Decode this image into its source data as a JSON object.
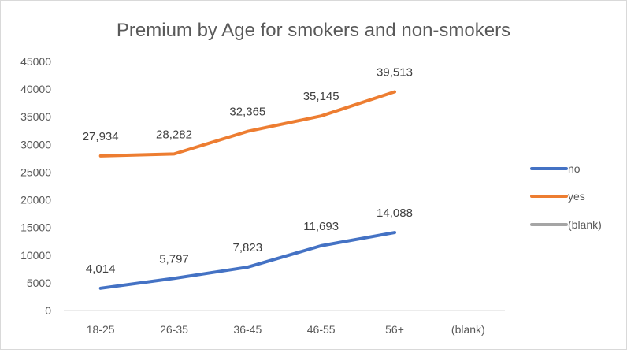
{
  "colors": {
    "no": "#4472C4",
    "yes": "#ED7D31",
    "blank": "#A5A5A5",
    "text": "#595959",
    "axis": "#d9d9d9"
  },
  "chart_data": {
    "type": "line",
    "title": "Premium by Age for smokers and non-smokers",
    "xlabel": "",
    "ylabel": "",
    "categories": [
      "18-25",
      "26-35",
      "36-45",
      "46-55",
      "56+",
      "(blank)"
    ],
    "ylim": [
      0,
      45000
    ],
    "yticks": [
      "0",
      "5000",
      "10000",
      "15000",
      "20000",
      "25000",
      "30000",
      "35000",
      "40000",
      "45000"
    ],
    "grid": false,
    "legend_position": "right",
    "series": [
      {
        "name": "no",
        "color_key": "no",
        "values": [
          4014,
          5797,
          7823,
          11693,
          14088,
          null
        ],
        "labels": [
          "4,014",
          "5,797",
          "7,823",
          "11,693",
          "14,088",
          ""
        ]
      },
      {
        "name": "yes",
        "color_key": "yes",
        "values": [
          27934,
          28282,
          32365,
          35145,
          39513,
          null
        ],
        "labels": [
          "27,934",
          "28,282",
          "32,365",
          "35,145",
          "39,513",
          ""
        ]
      },
      {
        "name": "(blank)",
        "color_key": "blank",
        "values": [
          null,
          null,
          null,
          null,
          null,
          null
        ],
        "labels": [
          "",
          "",
          "",
          "",
          "",
          ""
        ]
      }
    ]
  }
}
